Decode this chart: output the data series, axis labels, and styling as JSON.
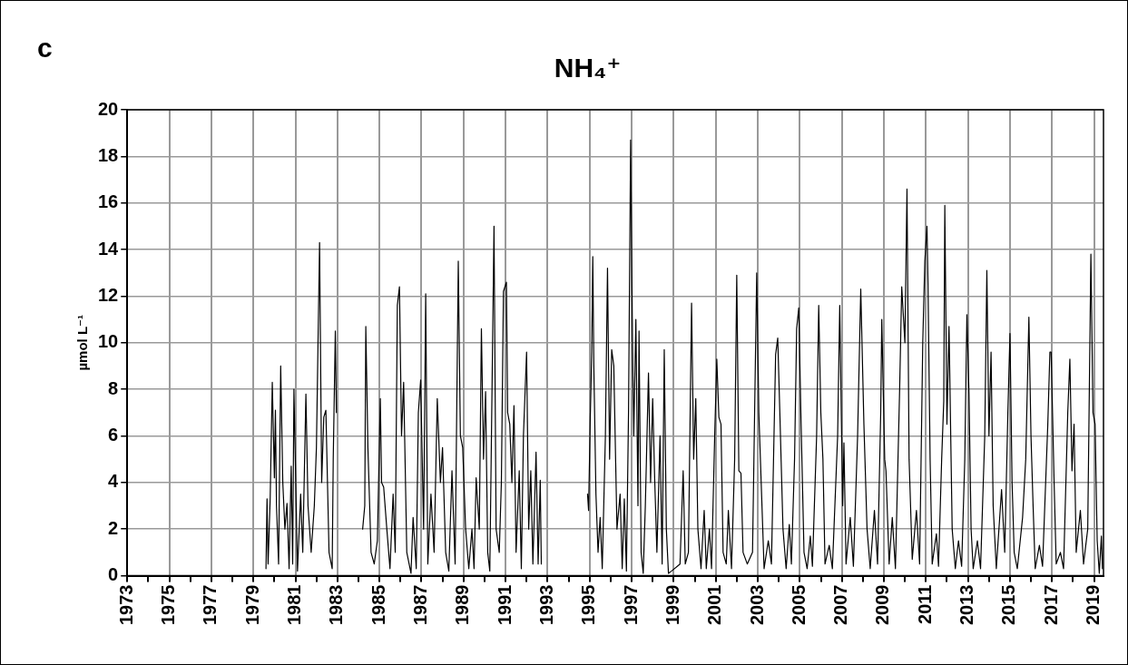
{
  "chart_data": {
    "type": "line",
    "title": "NH₄⁺",
    "ylabel": "µmol L⁻¹",
    "annotations": [
      "c"
    ],
    "x": [
      1979.6,
      1979.65,
      1979.7,
      1979.8,
      1979.9,
      1980.0,
      1980.05,
      1980.1,
      1980.2,
      1980.3,
      1980.4,
      1980.5,
      1980.6,
      1980.7,
      1980.8,
      1980.87,
      1980.93,
      1981.1,
      1981.25,
      1981.35,
      1981.5,
      1981.6,
      1981.75,
      1981.9,
      1982.0,
      1982.15,
      1982.25,
      1982.35,
      1982.45,
      1982.6,
      1982.75,
      1982.8,
      1982.9,
      1982.95,
      1983.5,
      1984.2,
      1984.3,
      1984.35,
      1984.45,
      1984.6,
      1984.75,
      1984.9,
      1985.04,
      1985.1,
      1985.2,
      1985.35,
      1985.5,
      1985.65,
      1985.75,
      1985.85,
      1985.95,
      1986.05,
      1986.15,
      1986.3,
      1986.5,
      1986.6,
      1986.75,
      1986.85,
      1986.96,
      1987.1,
      1987.2,
      1987.3,
      1987.45,
      1987.6,
      1987.75,
      1987.9,
      1988.0,
      1988.15,
      1988.3,
      1988.45,
      1988.6,
      1988.75,
      1988.85,
      1988.96,
      1989.1,
      1989.25,
      1989.4,
      1989.5,
      1989.6,
      1989.75,
      1989.85,
      1989.95,
      1990.05,
      1990.15,
      1990.25,
      1990.45,
      1990.55,
      1990.7,
      1990.8,
      1990.9,
      1991.04,
      1991.1,
      1991.2,
      1991.3,
      1991.4,
      1991.5,
      1991.65,
      1991.75,
      1991.85,
      1992.0,
      1992.1,
      1992.2,
      1992.3,
      1992.45,
      1992.55,
      1992.65,
      1992.7,
      1993.8,
      1994.9,
      1994.95,
      1995.03,
      1995.1,
      1995.15,
      1995.2,
      1995.3,
      1995.4,
      1995.5,
      1995.6,
      1995.75,
      1995.85,
      1995.95,
      1996.05,
      1996.15,
      1996.3,
      1996.45,
      1996.55,
      1996.65,
      1996.75,
      1996.85,
      1996.95,
      1997.04,
      1997.1,
      1997.2,
      1997.3,
      1997.35,
      1997.45,
      1997.55,
      1997.65,
      1997.8,
      1997.9,
      1998.0,
      1998.1,
      1998.2,
      1998.35,
      1998.45,
      1998.55,
      1998.65,
      1998.75,
      1998.9,
      1999.3,
      1999.45,
      1999.55,
      1999.7,
      1999.85,
      1999.95,
      2000.05,
      2000.15,
      2000.3,
      2000.45,
      2000.55,
      2000.7,
      2000.8,
      2000.95,
      2001.05,
      2001.15,
      2001.25,
      2001.35,
      2001.5,
      2001.6,
      2001.75,
      2001.9,
      2002.0,
      2002.1,
      2002.2,
      2002.3,
      2002.5,
      2002.75,
      2002.95,
      2003.05,
      2003.2,
      2003.3,
      2003.5,
      2003.65,
      2003.85,
      2003.95,
      2004.05,
      2004.2,
      2004.35,
      2004.5,
      2004.6,
      2004.75,
      2004.85,
      2004.95,
      2005.05,
      2005.2,
      2005.35,
      2005.5,
      2005.6,
      2005.8,
      2005.9,
      2006.0,
      2006.1,
      2006.2,
      2006.4,
      2006.55,
      2006.8,
      2006.9,
      2007.04,
      2007.1,
      2007.2,
      2007.4,
      2007.55,
      2007.75,
      2007.9,
      2008.05,
      2008.2,
      2008.35,
      2008.55,
      2008.7,
      2008.85,
      2008.9,
      2009.04,
      2009.1,
      2009.25,
      2009.4,
      2009.55,
      2009.75,
      2009.85,
      2010.0,
      2010.1,
      2010.2,
      2010.35,
      2010.55,
      2010.7,
      2010.85,
      2010.95,
      2011.05,
      2011.1,
      2011.2,
      2011.3,
      2011.5,
      2011.6,
      2011.75,
      2011.85,
      2011.9,
      2012.0,
      2012.1,
      2012.25,
      2012.4,
      2012.55,
      2012.7,
      2012.85,
      2012.95,
      2013.05,
      2013.15,
      2013.25,
      2013.45,
      2013.6,
      2013.8,
      2013.9,
      2014.0,
      2014.1,
      2014.2,
      2014.35,
      2014.6,
      2014.75,
      2014.9,
      2015.0,
      2015.1,
      2015.2,
      2015.35,
      2015.6,
      2015.75,
      2015.9,
      2016.0,
      2016.1,
      2016.2,
      2016.4,
      2016.55,
      2016.8,
      2016.9,
      2016.96,
      2017.1,
      2017.2,
      2017.4,
      2017.55,
      2017.75,
      2017.85,
      2017.95,
      2018.05,
      2018.15,
      2018.35,
      2018.5,
      2018.7,
      2018.85,
      2018.95,
      2019.05,
      2019.15,
      2019.25,
      2019.35,
      2019.4
    ],
    "series": [
      {
        "color": "#000000",
        "values": [
          0.3,
          3.3,
          0.5,
          3.3,
          8.3,
          4.2,
          7.1,
          3,
          0.5,
          9.0,
          4,
          2.0,
          3.1,
          0.3,
          4.7,
          0.5,
          8.0,
          0.2,
          3.5,
          1,
          7.8,
          3,
          1,
          3.0,
          5.5,
          14.3,
          4,
          6.8,
          7.1,
          1,
          0.3,
          5,
          10.5,
          7,
          null,
          2.0,
          3,
          10.7,
          5.5,
          1,
          0.5,
          1.5,
          7.6,
          4,
          3.8,
          2,
          0.3,
          3.5,
          1,
          11.6,
          12.4,
          6,
          8.3,
          1,
          0.1,
          2.5,
          0.3,
          7,
          8.4,
          2,
          12.1,
          0.5,
          3.5,
          1,
          7.6,
          4,
          5.5,
          1,
          0.2,
          4.5,
          0.5,
          13.5,
          6,
          5.5,
          2,
          0.3,
          2,
          0.3,
          4.2,
          2,
          10.6,
          5,
          7.9,
          1,
          0.2,
          15.0,
          2,
          1,
          4,
          12.2,
          12.6,
          7,
          6.5,
          4,
          7.3,
          1,
          4.5,
          0.3,
          6,
          9.6,
          2,
          4.5,
          0.5,
          5.3,
          0.5,
          4.1,
          0.5,
          null,
          3.5,
          2.8,
          6.8,
          9.6,
          13.7,
          9,
          3.5,
          1,
          2.5,
          0.3,
          6,
          13.2,
          5,
          9.7,
          9,
          2,
          3.5,
          0.3,
          3.3,
          0.2,
          7,
          18.7,
          10,
          6,
          11,
          3,
          10.5,
          1,
          0.1,
          3,
          8.7,
          4,
          7.6,
          4,
          1,
          6,
          0.5,
          9.7,
          2,
          0.1,
          0.2,
          0.5,
          4.5,
          0.5,
          1,
          11.7,
          5,
          7.6,
          2,
          0.3,
          2.8,
          0.3,
          2,
          0.3,
          6,
          9.3,
          6.8,
          6.5,
          1,
          0.5,
          2.8,
          0.3,
          5,
          12.9,
          4.5,
          4.4,
          1,
          0.5,
          1,
          13.0,
          7,
          3,
          0.3,
          1.5,
          0.5,
          9.5,
          10.2,
          7,
          2,
          0.3,
          2.2,
          0.5,
          5,
          10.6,
          11.5,
          7,
          1,
          0.3,
          1.7,
          0.4,
          6,
          11.6,
          7,
          5,
          0.5,
          1.3,
          0.3,
          6,
          11.6,
          3,
          5.7,
          0.5,
          2.5,
          0.4,
          6,
          12.3,
          6.5,
          2,
          0.3,
          2.8,
          0.5,
          7,
          11,
          5,
          4.5,
          0.5,
          2.5,
          0.3,
          8,
          12.4,
          10,
          16.6,
          5,
          0.7,
          2.8,
          0.5,
          10,
          13.5,
          15.0,
          12.5,
          5,
          0.5,
          1.8,
          0.4,
          5,
          7.5,
          15.9,
          6.5,
          10.7,
          2,
          0.3,
          1.5,
          0.4,
          5,
          11.2,
          7.8,
          2,
          0.3,
          1.5,
          0.3,
          6,
          13.1,
          6,
          9.6,
          3,
          0.3,
          3.7,
          1,
          7,
          10.4,
          4,
          1,
          0.3,
          2.5,
          5,
          11.1,
          6,
          3,
          0.3,
          1.3,
          0.4,
          6.5,
          9.6,
          9.6,
          4,
          0.5,
          1,
          0.3,
          7,
          9.3,
          4.5,
          6.5,
          1,
          2.8,
          0.5,
          2,
          13.8,
          7,
          6.5,
          1.5,
          0.1,
          1.7,
          0.3
        ]
      }
    ],
    "xlim": [
      1973,
      2019.45
    ],
    "ylim": [
      0,
      20
    ],
    "xticks": [
      1973,
      {
        "value": 1974,
        "label": null
      },
      1975,
      {
        "value": 1976,
        "label": null
      },
      1977,
      {
        "value": 1978,
        "label": null
      },
      1979,
      {
        "value": 1980,
        "label": null
      },
      1981,
      {
        "value": 1982,
        "label": null
      },
      1983,
      {
        "value": 1984,
        "label": null
      },
      1985,
      {
        "value": 1986,
        "label": null
      },
      1987,
      {
        "value": 1988,
        "label": null
      },
      1989,
      {
        "value": 1990,
        "label": null
      },
      1991,
      {
        "value": 1992,
        "label": null
      },
      1993,
      {
        "value": 1994,
        "label": null
      },
      1995,
      {
        "value": 1996,
        "label": null
      },
      1997,
      {
        "value": 1998,
        "label": null
      },
      1999,
      {
        "value": 2000,
        "label": null
      },
      2001,
      {
        "value": 2002,
        "label": null
      },
      2003,
      {
        "value": 2004,
        "label": null
      },
      2005,
      {
        "value": 2006,
        "label": null
      },
      2007,
      {
        "value": 2008,
        "label": null
      },
      2009,
      {
        "value": 2010,
        "label": null
      },
      2011,
      {
        "value": 2012,
        "label": null
      },
      2013,
      {
        "value": 2014,
        "label": null
      },
      2015,
      {
        "value": 2016,
        "label": null
      },
      2017,
      {
        "value": 2018,
        "label": null
      },
      2019
    ],
    "yticks": [
      0,
      2,
      4,
      6,
      8,
      10,
      12,
      14,
      16,
      18,
      20
    ],
    "grid": true,
    "legend": false,
    "marker": "none",
    "line_style": "solid"
  }
}
